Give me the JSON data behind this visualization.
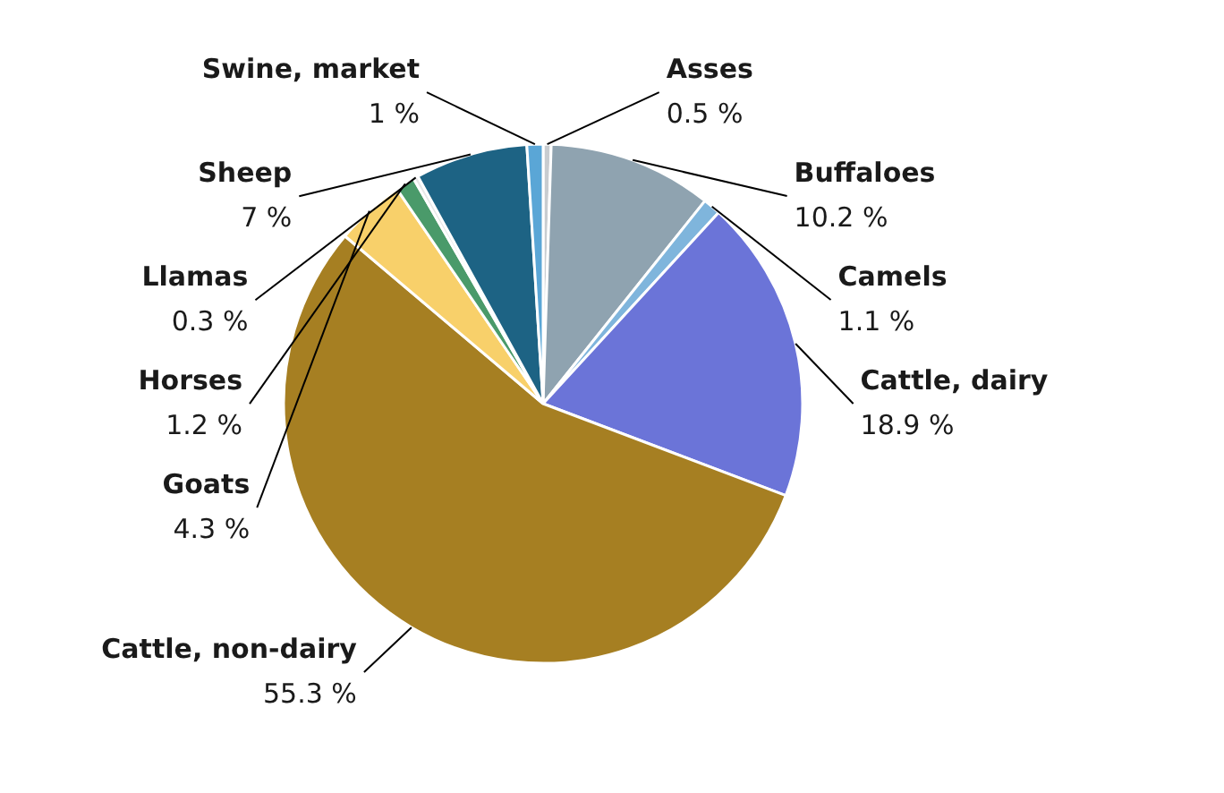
{
  "chart_data": {
    "type": "pie",
    "categories": [
      "Asses",
      "Buffaloes",
      "Camels",
      "Cattle, dairy",
      "Cattle, non-dairy",
      "Goats",
      "Horses",
      "Llamas",
      "Sheep",
      "Swine, market"
    ],
    "values": [
      0.5,
      10.2,
      1.1,
      18.9,
      55.3,
      4.3,
      1.2,
      0.3,
      7,
      1
    ],
    "value_labels": [
      "0.5 %",
      "10.2 %",
      "1.1 %",
      "18.9 %",
      "55.3 %",
      "4.3 %",
      "1.2 %",
      "0.3 %",
      "7 %",
      "1 %"
    ],
    "colors": [
      "#c8ccd0",
      "#8fa3b0",
      "#7fb5dc",
      "#6b74d8",
      "#a67f22",
      "#f8d06a",
      "#4a9a6a",
      "#e8e8e8",
      "#1d6384",
      "#5aa6d6"
    ]
  }
}
